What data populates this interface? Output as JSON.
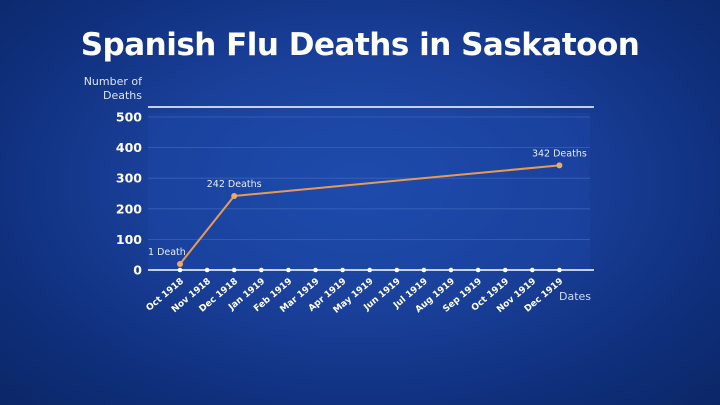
{
  "title": "Spanish Flu Deaths in Saskatoon",
  "colors": {
    "background": "#1a409a",
    "line": "#e89a55",
    "marker": "#f0a86a",
    "axis": "#ffffff",
    "grid": "#3a62b8"
  },
  "chart_data": {
    "type": "line",
    "title": "Spanish Flu Deaths in Saskatoon",
    "xlabel": "Dates",
    "ylabel": "Number of Deaths",
    "ylim": [
      0,
      500
    ],
    "yticks": [
      0,
      100,
      200,
      300,
      400,
      500
    ],
    "grid": true,
    "legend": null,
    "categories": [
      "Oct 1918",
      "Nov 1918",
      "Dec 1918",
      "Jan 1919",
      "Feb 1919",
      "Mar 1919",
      "Apr 1919",
      "May 1919",
      "Jun 1919",
      "Jul 1919",
      "Aug 1919",
      "Sep 1919",
      "Oct 1919",
      "Nov 1919",
      "Dec 1919"
    ],
    "series": [
      {
        "name": "Deaths",
        "points": [
          {
            "x": "Oct 1918",
            "y": 1,
            "label": "1 Death"
          },
          {
            "x": "Dec 1918",
            "y": 242,
            "label": "242 Deaths"
          },
          {
            "x": "Dec 1919",
            "y": 342,
            "label": "342 Deaths"
          }
        ]
      }
    ]
  }
}
